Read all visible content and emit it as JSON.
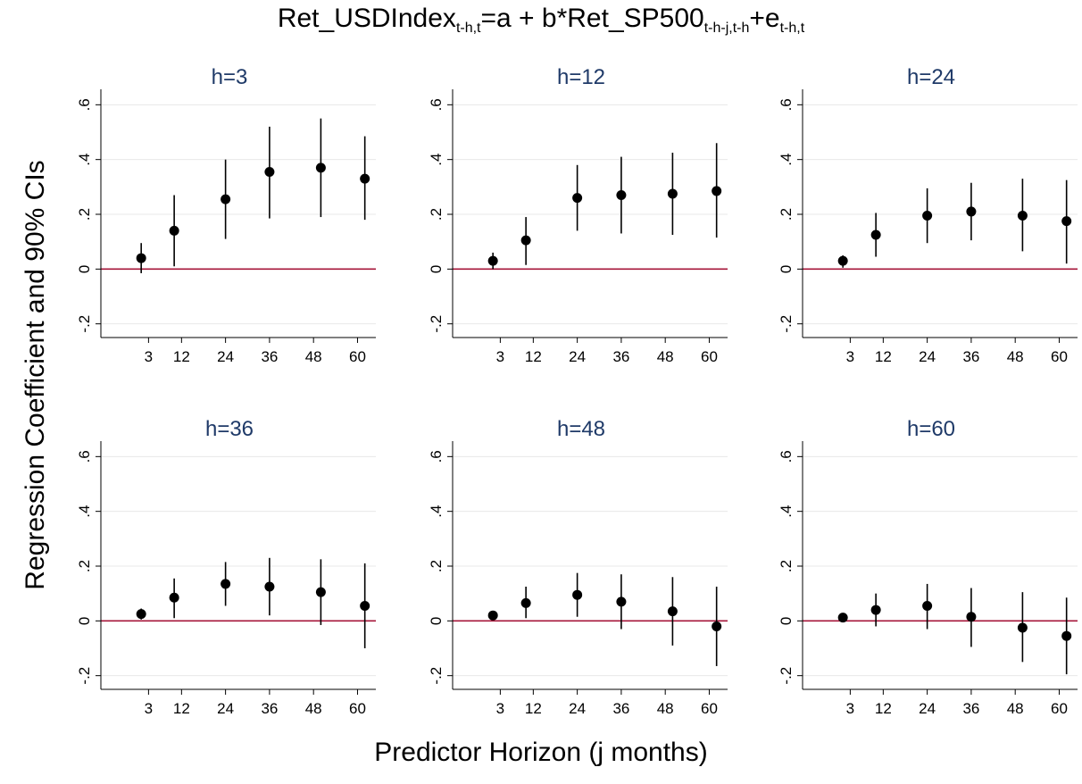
{
  "figure": {
    "title_parts": [
      {
        "text": "Ret_USDIndex",
        "sub": false
      },
      {
        "text": "t-h,t",
        "sub": true
      },
      {
        "text": "=a + b*Ret_SP500",
        "sub": false
      },
      {
        "text": "t-h-j,t-h",
        "sub": true
      },
      {
        "text": "+e",
        "sub": false
      },
      {
        "text": "t-h,t",
        "sub": true
      }
    ],
    "ylabel": "Regression Coefficient and 90% CIs",
    "xlabel": "Predictor Horizon (j months)"
  },
  "colors": {
    "panel_title": "#1f3a68",
    "zero_line": "#a6163a",
    "marker": "#000000",
    "grid": "#e8e8e8"
  },
  "chart_data": [
    {
      "type": "scatter",
      "title": "h=3",
      "x": [
        1,
        10,
        24,
        36,
        50,
        62
      ],
      "coef": [
        0.04,
        0.14,
        0.255,
        0.355,
        0.37,
        0.33
      ],
      "ci_low": [
        -0.015,
        0.01,
        0.11,
        0.185,
        0.19,
        0.18
      ],
      "ci_high": [
        0.095,
        0.27,
        0.4,
        0.52,
        0.55,
        0.485
      ],
      "xticks": [
        3,
        12,
        24,
        36,
        48,
        60
      ],
      "yticks": [
        -0.2,
        0,
        0.2,
        0.4,
        0.6
      ],
      "ytick_labels": [
        "-.2",
        "0",
        ".2",
        ".4",
        ".6"
      ],
      "xlim": [
        -10,
        65
      ],
      "ylim": [
        -0.25,
        0.65
      ],
      "reference_line": 0,
      "grid": true
    },
    {
      "type": "scatter",
      "title": "h=12",
      "x": [
        1,
        10,
        24,
        36,
        50,
        62
      ],
      "coef": [
        0.03,
        0.105,
        0.26,
        0.27,
        0.275,
        0.285
      ],
      "ci_low": [
        0.0,
        0.015,
        0.14,
        0.13,
        0.125,
        0.115
      ],
      "ci_high": [
        0.06,
        0.19,
        0.38,
        0.41,
        0.425,
        0.46
      ],
      "xticks": [
        3,
        12,
        24,
        36,
        48,
        60
      ],
      "yticks": [
        -0.2,
        0,
        0.2,
        0.4,
        0.6
      ],
      "ytick_labels": [
        "-.2",
        "0",
        ".2",
        ".4",
        ".6"
      ],
      "xlim": [
        -10,
        65
      ],
      "ylim": [
        -0.25,
        0.65
      ],
      "reference_line": 0,
      "grid": true
    },
    {
      "type": "scatter",
      "title": "h=24",
      "x": [
        1,
        10,
        24,
        36,
        50,
        62
      ],
      "coef": [
        0.03,
        0.125,
        0.195,
        0.21,
        0.195,
        0.175
      ],
      "ci_low": [
        0.005,
        0.045,
        0.095,
        0.105,
        0.065,
        0.02
      ],
      "ci_high": [
        0.05,
        0.205,
        0.295,
        0.315,
        0.33,
        0.325
      ],
      "xticks": [
        3,
        12,
        24,
        36,
        48,
        60
      ],
      "yticks": [
        -0.2,
        0,
        0.2,
        0.4,
        0.6
      ],
      "ytick_labels": [
        "-.2",
        "0",
        ".2",
        ".4",
        ".6"
      ],
      "xlim": [
        -10,
        65
      ],
      "ylim": [
        -0.25,
        0.65
      ],
      "reference_line": 0,
      "grid": true
    },
    {
      "type": "scatter",
      "title": "h=36",
      "x": [
        1,
        10,
        24,
        36,
        50,
        62
      ],
      "coef": [
        0.025,
        0.085,
        0.135,
        0.125,
        0.105,
        0.055
      ],
      "ci_low": [
        0.005,
        0.01,
        0.055,
        0.02,
        -0.015,
        -0.1
      ],
      "ci_high": [
        0.045,
        0.155,
        0.215,
        0.23,
        0.225,
        0.21
      ],
      "xticks": [
        3,
        12,
        24,
        36,
        48,
        60
      ],
      "yticks": [
        -0.2,
        0,
        0.2,
        0.4,
        0.6
      ],
      "ytick_labels": [
        "-.2",
        "0",
        ".2",
        ".4",
        ".6"
      ],
      "xlim": [
        -10,
        65
      ],
      "ylim": [
        -0.25,
        0.65
      ],
      "reference_line": 0,
      "grid": true
    },
    {
      "type": "scatter",
      "title": "h=48",
      "x": [
        1,
        10,
        24,
        36,
        50,
        62
      ],
      "coef": [
        0.02,
        0.065,
        0.095,
        0.07,
        0.035,
        -0.02
      ],
      "ci_low": [
        0.01,
        0.01,
        0.015,
        -0.03,
        -0.09,
        -0.165
      ],
      "ci_high": [
        0.035,
        0.125,
        0.175,
        0.17,
        0.16,
        0.125
      ],
      "xticks": [
        3,
        12,
        24,
        36,
        48,
        60
      ],
      "yticks": [
        -0.2,
        0,
        0.2,
        0.4,
        0.6
      ],
      "ytick_labels": [
        "-.2",
        "0",
        ".2",
        ".4",
        ".6"
      ],
      "xlim": [
        -10,
        65
      ],
      "ylim": [
        -0.25,
        0.65
      ],
      "reference_line": 0,
      "grid": true
    },
    {
      "type": "scatter",
      "title": "h=60",
      "x": [
        1,
        10,
        24,
        36,
        50,
        62
      ],
      "coef": [
        0.012,
        0.04,
        0.055,
        0.015,
        -0.025,
        -0.055
      ],
      "ci_low": [
        0.005,
        -0.02,
        -0.03,
        -0.095,
        -0.15,
        -0.195
      ],
      "ci_high": [
        0.02,
        0.1,
        0.135,
        0.12,
        0.105,
        0.085
      ],
      "xticks": [
        3,
        12,
        24,
        36,
        48,
        60
      ],
      "yticks": [
        -0.2,
        0,
        0.2,
        0.4,
        0.6
      ],
      "ytick_labels": [
        "-.2",
        "0",
        ".2",
        ".4",
        ".6"
      ],
      "xlim": [
        -10,
        65
      ],
      "ylim": [
        -0.25,
        0.65
      ],
      "reference_line": 0,
      "grid": true
    }
  ]
}
